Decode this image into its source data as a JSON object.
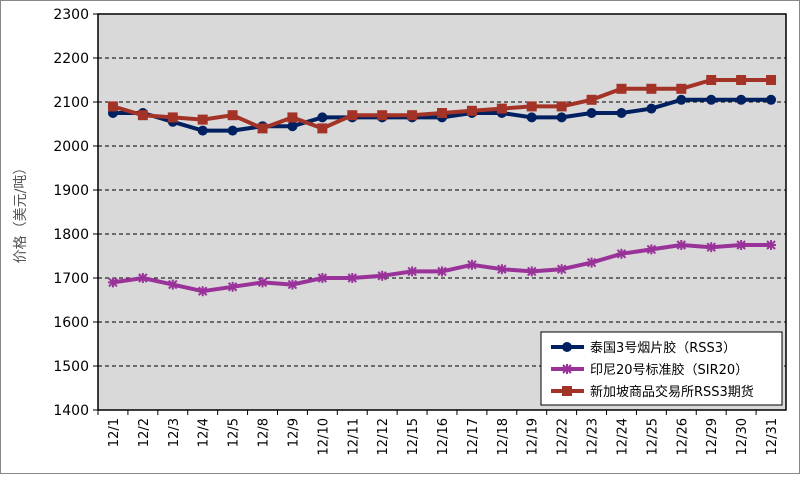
{
  "chart_data": {
    "type": "line",
    "title": "",
    "xlabel": "",
    "ylabel": "价格（美元/吨）",
    "ylim": [
      1400,
      2300
    ],
    "yticks": [
      1400,
      1500,
      1600,
      1700,
      1800,
      1900,
      2000,
      2100,
      2200,
      2300
    ],
    "grid": true,
    "legend_position": "bottom-right",
    "categories": [
      "12/1",
      "12/2",
      "12/3",
      "12/4",
      "12/5",
      "12/8",
      "12/9",
      "12/10",
      "12/11",
      "12/12",
      "12/15",
      "12/16",
      "12/17",
      "12/18",
      "12/19",
      "12/22",
      "12/23",
      "12/24",
      "12/25",
      "12/26",
      "12/29",
      "12/30",
      "12/31"
    ],
    "series": [
      {
        "name": "泰国3号烟片胶（RSS3）",
        "color": "#002060",
        "marker": "circle",
        "values": [
          2075,
          2075,
          2055,
          2035,
          2035,
          2045,
          2045,
          2065,
          2065,
          2065,
          2065,
          2065,
          2075,
          2075,
          2065,
          2065,
          2075,
          2075,
          2085,
          2105,
          2105,
          2105,
          2105
        ]
      },
      {
        "name": "印尼20号标准胶（SIR20）",
        "color": "#993399",
        "marker": "star",
        "values": [
          1690,
          1700,
          1685,
          1670,
          1680,
          1690,
          1685,
          1700,
          1700,
          1705,
          1715,
          1715,
          1730,
          1720,
          1715,
          1720,
          1735,
          1755,
          1765,
          1775,
          1770,
          1775,
          1775
        ]
      },
      {
        "name": "新加坡商品交易所RSS3期货",
        "color": "#A33327",
        "marker": "square",
        "values": [
          2090,
          2070,
          2065,
          2060,
          2070,
          2040,
          2065,
          2040,
          2070,
          2070,
          2070,
          2075,
          2080,
          2085,
          2090,
          2090,
          2105,
          2130,
          2130,
          2130,
          2150,
          2150,
          2150
        ]
      }
    ]
  }
}
